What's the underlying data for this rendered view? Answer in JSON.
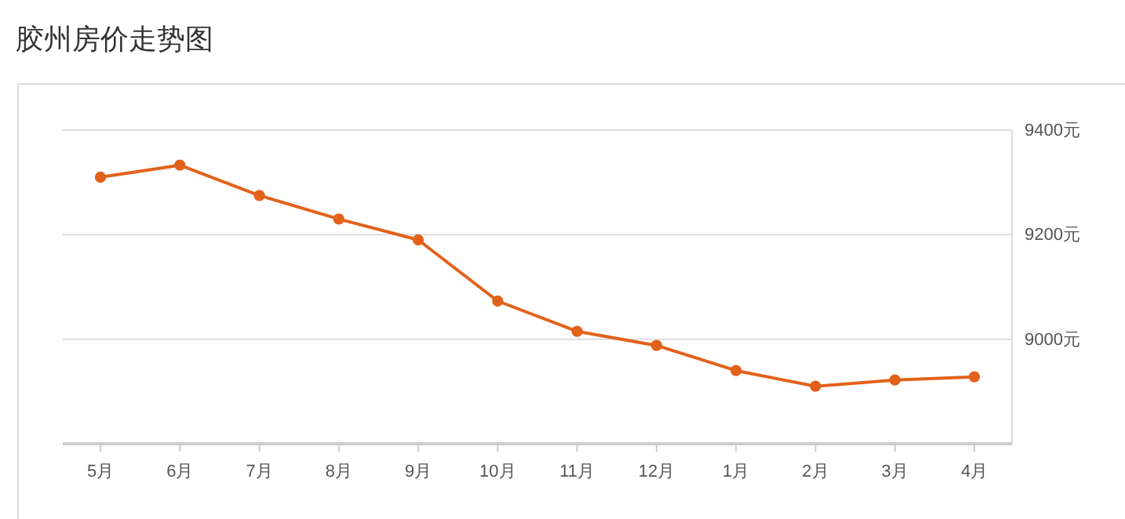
{
  "chart_data": {
    "type": "line",
    "title": "胶州房价走势图",
    "categories": [
      "5月",
      "6月",
      "7月",
      "8月",
      "9月",
      "10月",
      "11月",
      "12月",
      "1月",
      "2月",
      "3月",
      "4月"
    ],
    "series": [
      {
        "color": "#e2621b",
        "values": [
          9310,
          9333,
          9275,
          9230,
          9190,
          9073,
          9015,
          8988,
          8940,
          8910,
          8922,
          8928
        ]
      }
    ],
    "ylim": [
      8800,
      9400
    ],
    "yticks": [
      {
        "value": 9000,
        "label": "9000元"
      },
      {
        "value": 9200,
        "label": "9200元"
      },
      {
        "value": 9400,
        "label": "9400元"
      }
    ],
    "grid": "y",
    "marker": "circle",
    "line_style": "solid"
  }
}
